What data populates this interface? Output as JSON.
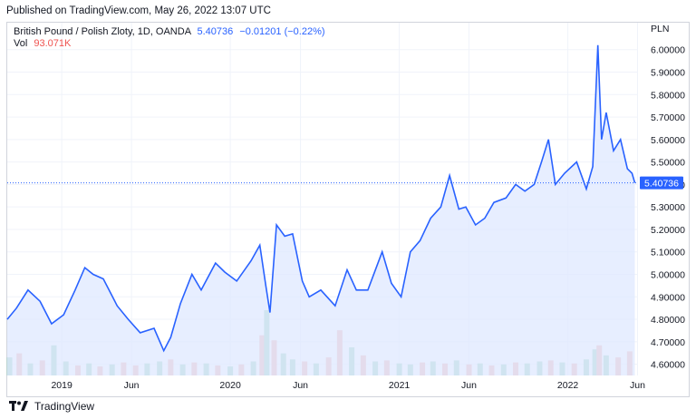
{
  "published": "Published on TradingView.com, May 26, 2022 13:07 UTC",
  "legend": {
    "symbol": "British Pound / Polish Zloty, 1D, OANDA",
    "price": "5.40736",
    "change": "−0.01201 (−0.22%)",
    "vol_label": "Vol",
    "vol_value": "93.071K"
  },
  "currency": "PLN",
  "last_price_label": "5.40736",
  "brand": "TradingView",
  "colors": {
    "line": "#2962ff",
    "fill": "#dfe8ff",
    "vol_up": "#a5d6c4",
    "vol_down": "#f2b8b5",
    "grid": "#f0f3fa"
  },
  "chart_data": {
    "type": "area",
    "title": "British Pound / Polish Zloty, 1D, OANDA",
    "ylim": [
      4.55,
      6.12
    ],
    "y_ticks": [
      "4.60000",
      "4.70000",
      "4.80000",
      "4.90000",
      "5.00000",
      "5.10000",
      "5.20000",
      "5.30000",
      "5.40000",
      "5.50000",
      "5.60000",
      "5.70000",
      "5.80000",
      "5.90000",
      "6.00000"
    ],
    "x_ticks": [
      "2019",
      "Jun",
      "2020",
      "Jun",
      "2021",
      "Jun",
      "2022",
      "Jun"
    ],
    "x_tick_dates": [
      "2019-01-01",
      "2019-06-01",
      "2020-01-01",
      "2020-06-01",
      "2021-01-01",
      "2021-06-01",
      "2022-01-01",
      "2022-06-01"
    ],
    "x_range": [
      "2018-09-05",
      "2022-05-31"
    ],
    "series": [
      {
        "dates": [
          "2018-09-05",
          "2018-09-25",
          "2018-10-20",
          "2018-11-15",
          "2018-12-10",
          "2019-01-05",
          "2019-01-30",
          "2019-02-20",
          "2019-03-10",
          "2019-04-01",
          "2019-05-01",
          "2019-05-25",
          "2019-06-20",
          "2019-07-20",
          "2019-08-10",
          "2019-08-25",
          "2019-09-15",
          "2019-10-10",
          "2019-10-30",
          "2019-11-30",
          "2019-12-20",
          "2020-01-15",
          "2020-02-15",
          "2020-03-05",
          "2020-03-18",
          "2020-03-27",
          "2020-04-10",
          "2020-04-28",
          "2020-05-15",
          "2020-06-05",
          "2020-06-20",
          "2020-07-15",
          "2020-08-15",
          "2020-09-10",
          "2020-09-30",
          "2020-10-25",
          "2020-11-25",
          "2020-12-15",
          "2021-01-05",
          "2021-01-25",
          "2021-02-15",
          "2021-03-10",
          "2021-04-01",
          "2021-04-20",
          "2021-05-10",
          "2021-05-25",
          "2021-06-15",
          "2021-07-05",
          "2021-07-25",
          "2021-08-20",
          "2021-09-10",
          "2021-09-30",
          "2021-10-20",
          "2021-11-05",
          "2021-11-20",
          "2021-12-05",
          "2021-12-25",
          "2022-01-20",
          "2022-02-10",
          "2022-02-24",
          "2022-03-07",
          "2022-03-15",
          "2022-03-25",
          "2022-04-10",
          "2022-04-25",
          "2022-05-10",
          "2022-05-20",
          "2022-05-26"
        ],
        "values": [
          4.8,
          4.85,
          4.93,
          4.88,
          4.78,
          4.82,
          4.93,
          5.03,
          5.0,
          4.98,
          4.86,
          4.8,
          4.74,
          4.76,
          4.66,
          4.72,
          4.87,
          5.0,
          4.93,
          5.05,
          5.01,
          4.97,
          5.06,
          5.13,
          4.95,
          4.83,
          5.22,
          5.17,
          5.18,
          4.97,
          4.9,
          4.93,
          4.86,
          5.02,
          4.93,
          4.93,
          5.1,
          4.96,
          4.9,
          5.1,
          5.15,
          5.25,
          5.3,
          5.44,
          5.29,
          5.3,
          5.22,
          5.25,
          5.32,
          5.34,
          5.4,
          5.37,
          5.4,
          5.5,
          5.6,
          5.4,
          5.45,
          5.5,
          5.38,
          5.48,
          6.02,
          5.6,
          5.72,
          5.55,
          5.6,
          5.47,
          5.45,
          5.40736
        ]
      }
    ],
    "volume": {
      "dates": [
        "2018-09-10",
        "2018-10-01",
        "2018-10-25",
        "2018-11-20",
        "2018-12-15",
        "2019-01-10",
        "2019-02-05",
        "2019-03-01",
        "2019-03-25",
        "2019-04-20",
        "2019-05-15",
        "2019-06-10",
        "2019-07-05",
        "2019-08-01",
        "2019-08-25",
        "2019-09-20",
        "2019-10-15",
        "2019-11-10",
        "2019-12-05",
        "2020-01-01",
        "2020-01-25",
        "2020-02-20",
        "2020-03-10",
        "2020-03-20",
        "2020-04-05",
        "2020-04-25",
        "2020-05-15",
        "2020-06-10",
        "2020-07-05",
        "2020-08-01",
        "2020-08-25",
        "2020-09-20",
        "2020-10-15",
        "2020-11-10",
        "2020-12-05",
        "2021-01-01",
        "2021-01-25",
        "2021-02-20",
        "2021-03-15",
        "2021-04-10",
        "2021-05-05",
        "2021-06-01",
        "2021-06-25",
        "2021-07-20",
        "2021-08-15",
        "2021-09-10",
        "2021-10-05",
        "2021-11-01",
        "2021-11-25",
        "2021-12-20",
        "2022-01-15",
        "2022-02-10",
        "2022-03-01",
        "2022-03-10",
        "2022-03-25",
        "2022-04-20",
        "2022-05-15"
      ],
      "values": [
        18,
        22,
        12,
        15,
        30,
        14,
        10,
        12,
        9,
        11,
        13,
        10,
        12,
        14,
        16,
        11,
        13,
        12,
        10,
        9,
        11,
        14,
        40,
        65,
        35,
        22,
        16,
        14,
        12,
        18,
        45,
        28,
        20,
        14,
        15,
        12,
        11,
        13,
        14,
        12,
        15,
        11,
        12,
        10,
        11,
        13,
        12,
        14,
        15,
        13,
        12,
        16,
        26,
        30,
        20,
        18,
        24
      ],
      "up": [
        true,
        false,
        true,
        false,
        true,
        true,
        false,
        true,
        false,
        true,
        false,
        false,
        true,
        true,
        false,
        true,
        false,
        true,
        false,
        true,
        false,
        true,
        false,
        true,
        false,
        true,
        true,
        false,
        true,
        false,
        false,
        true,
        false,
        true,
        false,
        true,
        true,
        false,
        true,
        false,
        true,
        false,
        true,
        false,
        true,
        false,
        true,
        true,
        false,
        true,
        false,
        true,
        true,
        false,
        true,
        false,
        false
      ]
    }
  }
}
